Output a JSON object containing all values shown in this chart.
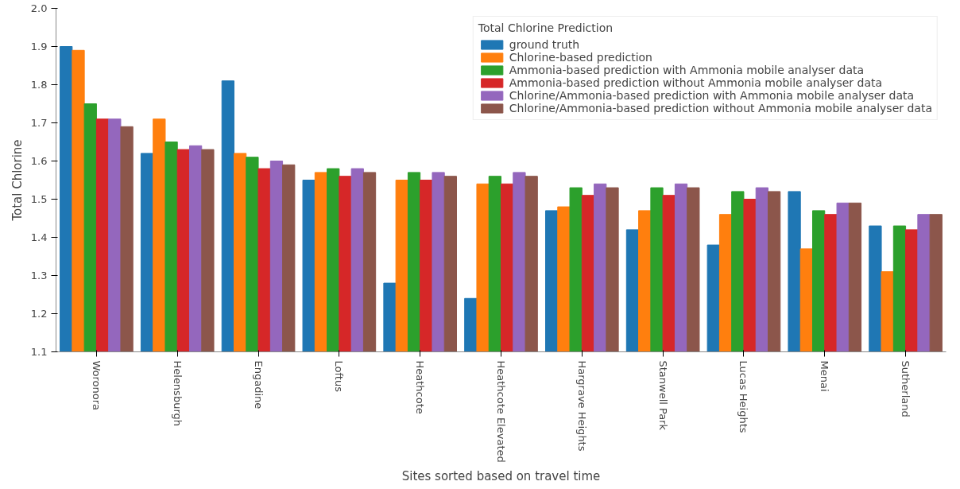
{
  "chart_data": {
    "type": "bar",
    "xlabel": "Sites sorted based on travel time",
    "ylabel": "Total Chlorine",
    "legend_title": "Total Chlorine Prediction",
    "categories": [
      "Woronora",
      "Helensburgh",
      "Engadine",
      "Loftus",
      "Heathcote",
      "Heathcote Elevated",
      "Hargrave Heights",
      "Stanwell Park",
      "Lucas Heights",
      "Menai",
      "Sutherland"
    ],
    "series": [
      {
        "name": "ground truth",
        "color": "#1f77b4",
        "values": [
          1.9,
          1.62,
          1.81,
          1.55,
          1.28,
          1.24,
          1.47,
          1.42,
          1.38,
          1.52,
          1.43
        ]
      },
      {
        "name": "Chlorine-based prediction",
        "color": "#ff7f0e",
        "values": [
          1.89,
          1.71,
          1.62,
          1.57,
          1.55,
          1.54,
          1.48,
          1.47,
          1.46,
          1.37,
          1.31
        ]
      },
      {
        "name": "Ammonia-based prediction with Ammonia mobile analyser data",
        "color": "#2ca02c",
        "values": [
          1.75,
          1.65,
          1.61,
          1.58,
          1.57,
          1.56,
          1.53,
          1.53,
          1.52,
          1.47,
          1.43
        ]
      },
      {
        "name": "Ammonia-based prediction without Ammonia mobile analyser data",
        "color": "#d62728",
        "values": [
          1.71,
          1.63,
          1.58,
          1.56,
          1.55,
          1.54,
          1.51,
          1.51,
          1.5,
          1.46,
          1.42
        ]
      },
      {
        "name": "Chlorine/Ammonia-based prediction with Ammonia mobile analyser data",
        "color": "#9467bd",
        "values": [
          1.71,
          1.64,
          1.6,
          1.58,
          1.57,
          1.57,
          1.54,
          1.54,
          1.53,
          1.49,
          1.46
        ]
      },
      {
        "name": "Chlorine/Ammonia-based prediction without Ammonia mobile analyser data",
        "color": "#8c564b",
        "values": [
          1.69,
          1.63,
          1.59,
          1.57,
          1.56,
          1.56,
          1.53,
          1.53,
          1.52,
          1.49,
          1.46
        ]
      }
    ],
    "ylim": [
      1.1,
      2.0
    ],
    "yticks": [
      1.1,
      1.2,
      1.3,
      1.4,
      1.5,
      1.6,
      1.7,
      1.8,
      1.9,
      {
        "value": 2.0,
        "label": "2.0"
      }
    ],
    "grid": false,
    "legend": "top right"
  }
}
